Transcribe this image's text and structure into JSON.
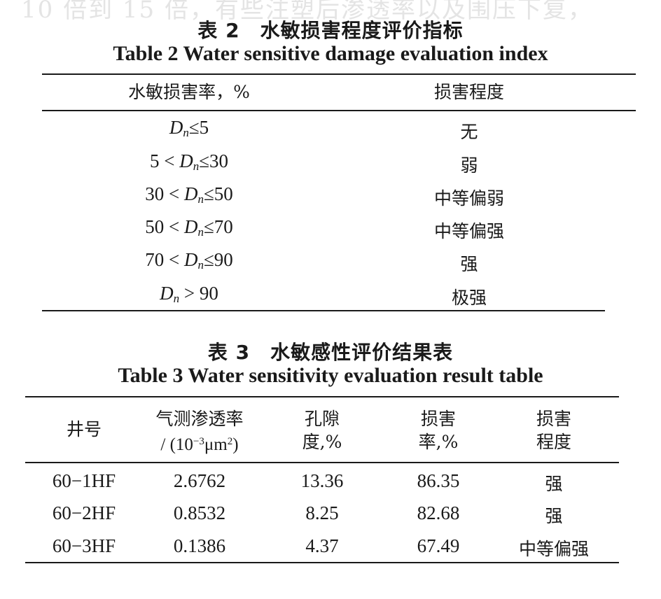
{
  "ghost_text": "10 倍到 15 倍，有些注塑后渗透率以及围压下复，",
  "table2": {
    "caption_cn": "表 2　水敏损害程度评价指标",
    "caption_en": "Table 2 Water sensitive damage evaluation index",
    "headers": [
      "水敏损害率，%",
      "损害程度"
    ],
    "rows": [
      {
        "lo": "",
        "op1": "",
        "var": "D",
        "sub": "n",
        "op2": "≤",
        "hi": "5",
        "level": "无"
      },
      {
        "lo": "5",
        "op1": " < ",
        "var": "D",
        "sub": "n",
        "op2": "≤",
        "hi": "30",
        "level": "弱"
      },
      {
        "lo": "30",
        "op1": " < ",
        "var": "D",
        "sub": "n",
        "op2": "≤",
        "hi": "50",
        "level": "中等偏弱"
      },
      {
        "lo": "50",
        "op1": " < ",
        "var": "D",
        "sub": "n",
        "op2": "≤",
        "hi": "70",
        "level": "中等偏强"
      },
      {
        "lo": "70",
        "op1": " < ",
        "var": "D",
        "sub": "n",
        "op2": "≤",
        "hi": "90",
        "level": "强"
      },
      {
        "lo": "",
        "op1": "",
        "var": "D",
        "sub": "n",
        "op2": " > ",
        "hi": "90",
        "level": "极强"
      }
    ]
  },
  "table3": {
    "caption_cn": "表 3　水敏感性评价结果表",
    "caption_en": "Table 3 Water sensitivity evaluation result table",
    "headers": {
      "well": "井号",
      "perm_l1": "气测渗透率",
      "perm_l2a": "/ (10",
      "perm_exp": "−3",
      "perm_l2b": "μm",
      "perm_exp2": "2",
      "perm_l2c": ")",
      "poro_l1": "孔隙",
      "poro_l2": "度,%",
      "dmg_l1": "损害",
      "dmg_l2": "率,%",
      "deg_l1": "损害",
      "deg_l2": "程度"
    },
    "rows": [
      {
        "well": "60−1HF",
        "perm": "2.6762",
        "poro": "13.36",
        "dmg": "86.35",
        "deg": "强"
      },
      {
        "well": "60−2HF",
        "perm": "0.8532",
        "poro": "8.25",
        "dmg": "82.68",
        "deg": "强"
      },
      {
        "well": "60−3HF",
        "perm": "0.1386",
        "poro": "4.37",
        "dmg": "67.49",
        "deg": "中等偏强"
      }
    ]
  }
}
